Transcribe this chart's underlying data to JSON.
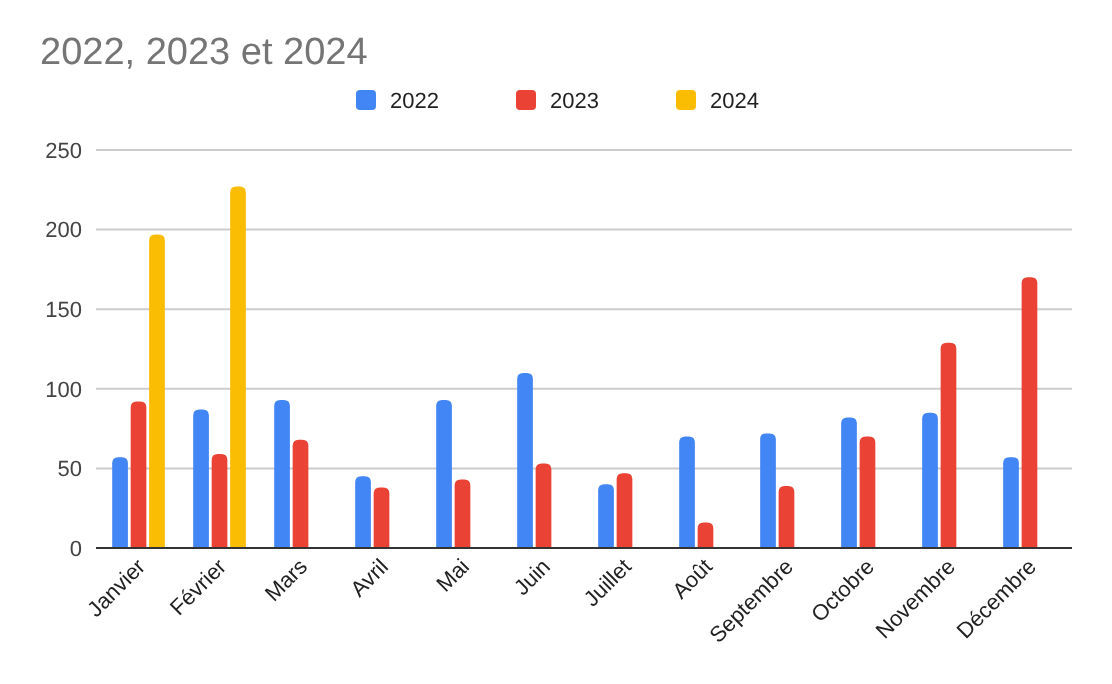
{
  "chart_data": {
    "type": "bar",
    "title": "2022, 2023 et 2024",
    "categories": [
      "Janvier",
      "Février",
      "Mars",
      "Avril",
      "Mai",
      "Juin",
      "Juillet",
      "Août",
      "Septembre",
      "Octobre",
      "Novembre",
      "Décembre"
    ],
    "series": [
      {
        "name": "2022",
        "color": "#4285f4",
        "values": [
          57,
          87,
          93,
          45,
          93,
          110,
          40,
          70,
          72,
          82,
          85,
          57
        ]
      },
      {
        "name": "2023",
        "color": "#ea4335",
        "values": [
          92,
          59,
          68,
          38,
          43,
          53,
          47,
          16,
          39,
          70,
          129,
          170
        ]
      },
      {
        "name": "2024",
        "color": "#fbbc04",
        "values": [
          197,
          227,
          null,
          null,
          null,
          null,
          null,
          null,
          null,
          null,
          null,
          null
        ]
      }
    ],
    "ylim": [
      0,
      250
    ],
    "yticks": [
      0,
      50,
      100,
      150,
      200,
      250
    ],
    "grid": "y",
    "legend": "top"
  }
}
